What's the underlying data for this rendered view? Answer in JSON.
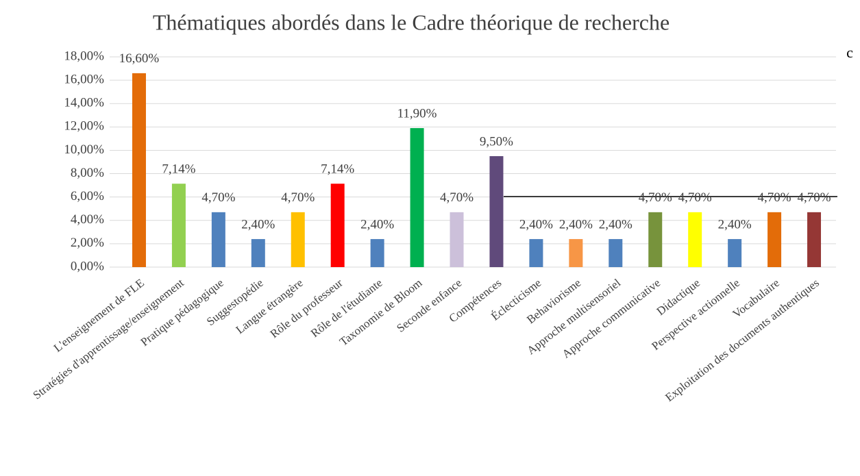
{
  "chart_data": {
    "type": "bar",
    "title": "Thématiques abordés dans le Cadre théorique de recherche",
    "annotation": "c",
    "categories": [
      "L'enseignement de FLE",
      "Stratégies d'apprentissage/enseignement",
      "Pratique pédagogique",
      "Suggestopédie",
      "Langue étrangère",
      "Rôle du professeur",
      "Rôle de l'étudiante",
      "Taxonomie de Bloom",
      "Seconde enfance",
      "Compétences",
      "Éclecticisme",
      "Behaviorisme",
      "Approche multisensoriel",
      "Approche communicative",
      "Didactique",
      "Perspective actionnelle",
      "Vocabulaire",
      "Exploitation des documents authentiques"
    ],
    "values": [
      16.6,
      7.14,
      4.7,
      2.4,
      4.7,
      7.14,
      2.4,
      11.9,
      4.7,
      9.5,
      2.4,
      2.4,
      2.4,
      4.7,
      4.7,
      2.4,
      4.7,
      4.7
    ],
    "value_labels": [
      "16,60%",
      "7,14%",
      "4,70%",
      "2,40%",
      "4,70%",
      "7,14%",
      "2,40%",
      "11,90%",
      "4,70%",
      "9,50%",
      "2,40%",
      "2,40%",
      "2,40%",
      "4,70%",
      "4,70%",
      "2,40%",
      "4,70%",
      "4,70%"
    ],
    "colors": [
      "#E36C09",
      "#92D050",
      "#4F81BD",
      "#4F81BD",
      "#FFC000",
      "#FF0000",
      "#4F81BD",
      "#00B050",
      "#CCC0DA",
      "#604A7B",
      "#4F81BD",
      "#F79646",
      "#4F81BD",
      "#77933C",
      "#FFFF00",
      "#4F81BD",
      "#E36C09",
      "#953735"
    ],
    "ylim": [
      0,
      18
    ],
    "yticks": [
      {
        "value": 0,
        "label": "0,00%"
      },
      {
        "value": 2,
        "label": "2,00%"
      },
      {
        "value": 4,
        "label": "4,00%"
      },
      {
        "value": 6,
        "label": "6,00%"
      },
      {
        "value": 8,
        "label": "8,00%"
      },
      {
        "value": 10,
        "label": "10,00%"
      },
      {
        "value": 12,
        "label": "12,00%"
      },
      {
        "value": 14,
        "label": "14,00%"
      },
      {
        "value": 16,
        "label": "16,00%"
      },
      {
        "value": 18,
        "label": "18,00%"
      }
    ],
    "grid": true
  }
}
